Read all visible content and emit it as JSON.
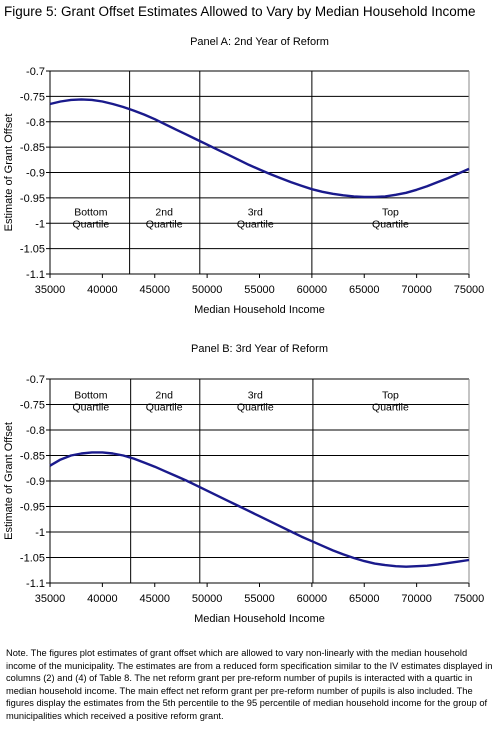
{
  "figure_title": "Figure 5: Grant Offset Estimates Allowed to Vary by Median Household Income",
  "note": "Note.  The figures plot estimates of grant offset which are allowed to vary non-linearly with the median household income of the municipality.  The estimates are from a reduced form specification similar to the IV estimates displayed in columns (2) and (4) of Table 8.  The net reform grant per pre-reform number of pupils is interacted with a quartic in median household income.  The main effect net reform grant per pre-reform number of pupils is also included.  The figures display the estimates from the 5th percentile to the 95 percentile of median household income for the group of municipalities which received a positive reform grant.",
  "colors": {
    "series": "#1a1a8c",
    "grid": "#000000",
    "divider": "#000000"
  },
  "chart_data": [
    {
      "type": "line",
      "title": "Panel A: 2nd Year of Reform",
      "xlabel": "Median Household Income",
      "ylabel": "Estimate of Grant Offset",
      "xlim": [
        35000,
        75000
      ],
      "ylim": [
        -1.1,
        -0.7
      ],
      "x_ticks": [
        35000,
        40000,
        45000,
        50000,
        55000,
        60000,
        65000,
        70000,
        75000
      ],
      "x_tick_labels": [
        "35000",
        "40000",
        "45000",
        "50000",
        "55000",
        "60000",
        "65000",
        "70000",
        "75000"
      ],
      "y_ticks": [
        -0.7,
        -0.75,
        -0.8,
        -0.85,
        -0.9,
        -0.95,
        -1,
        -1.05,
        -1.1
      ],
      "y_tick_labels": [
        "-0.7",
        "-0.75",
        "-0.8",
        "-0.85",
        "-0.9",
        "-0.95",
        "-1",
        "-1.05",
        "-1.1"
      ],
      "grid": "horizontal",
      "quartile_dividers": [
        42600,
        49300,
        60000
      ],
      "quartile_labels": [
        {
          "x": 38900,
          "y": -0.985,
          "lines": [
            "Bottom",
            "Quartile"
          ]
        },
        {
          "x": 45900,
          "y": -0.985,
          "lines": [
            "2nd",
            "Quartile"
          ]
        },
        {
          "x": 54600,
          "y": -0.985,
          "lines": [
            "3rd",
            "Quartile"
          ]
        },
        {
          "x": 67500,
          "y": -0.985,
          "lines": [
            "Top",
            "Quartile"
          ]
        }
      ],
      "series": [
        {
          "x": [
            35000,
            36000,
            37000,
            38000,
            39000,
            40000,
            41000,
            42000,
            43000,
            44000,
            45000,
            46000,
            47000,
            48000,
            49000,
            50000,
            51000,
            52000,
            53000,
            54000,
            55000,
            56000,
            57000,
            58000,
            59000,
            60000,
            61000,
            62000,
            63000,
            64000,
            65000,
            66000,
            67000,
            68000,
            69000,
            70000,
            71000,
            72000,
            73000,
            74000,
            75000
          ],
          "values": [
            -0.765,
            -0.76,
            -0.757,
            -0.756,
            -0.757,
            -0.76,
            -0.765,
            -0.771,
            -0.778,
            -0.786,
            -0.795,
            -0.805,
            -0.815,
            -0.825,
            -0.835,
            -0.845,
            -0.855,
            -0.865,
            -0.875,
            -0.885,
            -0.894,
            -0.903,
            -0.911,
            -0.919,
            -0.926,
            -0.933,
            -0.938,
            -0.942,
            -0.945,
            -0.947,
            -0.948,
            -0.948,
            -0.947,
            -0.944,
            -0.94,
            -0.934,
            -0.927,
            -0.919,
            -0.911,
            -0.902,
            -0.893
          ]
        }
      ]
    },
    {
      "type": "line",
      "title": "Panel B: 3rd Year of Reform",
      "xlabel": "Median Household Income",
      "ylabel": "Estimate of Grant Offset",
      "xlim": [
        35000,
        75000
      ],
      "ylim": [
        -1.1,
        -0.7
      ],
      "x_ticks": [
        35000,
        40000,
        45000,
        50000,
        55000,
        60000,
        65000,
        70000,
        75000
      ],
      "x_tick_labels": [
        "35000",
        "40000",
        "45000",
        "50000",
        "55000",
        "60000",
        "65000",
        "70000",
        "75000"
      ],
      "y_ticks": [
        -0.7,
        -0.75,
        -0.8,
        -0.85,
        -0.9,
        -0.95,
        -1,
        -1.05,
        -1.1
      ],
      "y_tick_labels": [
        "-0.7",
        "-0.75",
        "-0.8",
        "-0.85",
        "-0.9",
        "-0.95",
        "-1",
        "-1.05",
        "-1.1"
      ],
      "grid": "horizontal",
      "quartile_dividers": [
        42700,
        49300,
        60100
      ],
      "quartile_labels": [
        {
          "x": 38900,
          "y": -0.738,
          "lines": [
            "Bottom",
            "Quartile"
          ]
        },
        {
          "x": 45900,
          "y": -0.738,
          "lines": [
            "2nd",
            "Quartile"
          ]
        },
        {
          "x": 54600,
          "y": -0.738,
          "lines": [
            "3rd",
            "Quartile"
          ]
        },
        {
          "x": 67500,
          "y": -0.738,
          "lines": [
            "Top",
            "Quartile"
          ]
        }
      ],
      "series": [
        {
          "x": [
            35000,
            36000,
            37000,
            38000,
            39000,
            40000,
            41000,
            42000,
            43000,
            44000,
            45000,
            46000,
            47000,
            48000,
            49000,
            50000,
            51000,
            52000,
            53000,
            54000,
            55000,
            56000,
            57000,
            58000,
            59000,
            60000,
            61000,
            62000,
            63000,
            64000,
            65000,
            66000,
            67000,
            68000,
            69000,
            70000,
            71000,
            72000,
            73000,
            74000,
            75000
          ],
          "values": [
            -0.87,
            -0.858,
            -0.85,
            -0.846,
            -0.844,
            -0.844,
            -0.846,
            -0.85,
            -0.856,
            -0.864,
            -0.872,
            -0.881,
            -0.89,
            -0.899,
            -0.909,
            -0.919,
            -0.929,
            -0.939,
            -0.949,
            -0.959,
            -0.969,
            -0.979,
            -0.989,
            -0.999,
            -1.009,
            -1.018,
            -1.027,
            -1.036,
            -1.044,
            -1.051,
            -1.057,
            -1.062,
            -1.065,
            -1.067,
            -1.068,
            -1.067,
            -1.066,
            -1.064,
            -1.061,
            -1.058,
            -1.055
          ]
        }
      ]
    }
  ]
}
